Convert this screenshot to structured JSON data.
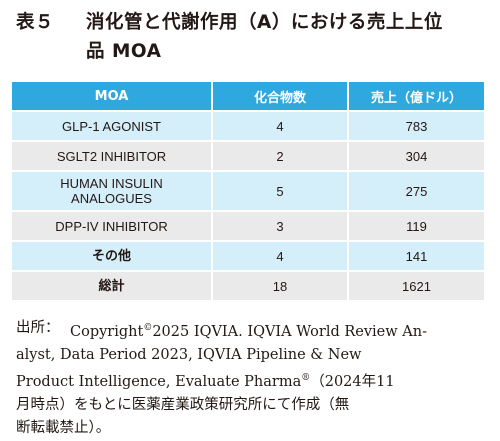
{
  "title": {
    "label": "表５",
    "line1": "消化管と代謝作用（A）における売上上位",
    "line2": "品 MOA"
  },
  "table": {
    "headers": [
      "MOA",
      "化合物数",
      "売上（億ドル）"
    ],
    "rows": [
      {
        "moa": "GLP-1 AGONIST",
        "count": "4",
        "sales": "783"
      },
      {
        "moa": "SGLT2 INHIBITOR",
        "count": "2",
        "sales": "304"
      },
      {
        "moa_line1": "HUMAN INSULIN",
        "moa_line2": "ANALOGUES",
        "count": "5",
        "sales": "275"
      },
      {
        "moa": "DPP-IV INHIBITOR",
        "count": "3",
        "sales": "119"
      },
      {
        "moa": "その他",
        "count": "4",
        "sales": "141"
      },
      {
        "moa": "総計",
        "count": "18",
        "sales": "1621"
      }
    ]
  },
  "source": {
    "label": "出所：",
    "line1_a": "Copyright",
    "line1_sup": "©",
    "line1_b": "2025 IQVIA. IQVIA World Review An-",
    "line2": "alyst, Data Period 2023, IQVIA Pipeline & New",
    "line3_a": "Product Intelligence, Evaluate Pharma",
    "line3_sup": "®",
    "line3_b": "（2024年11",
    "line4": "月時点）をもとに医薬産業政策研究所にて作成（無",
    "line5": "断転載禁止）。"
  }
}
